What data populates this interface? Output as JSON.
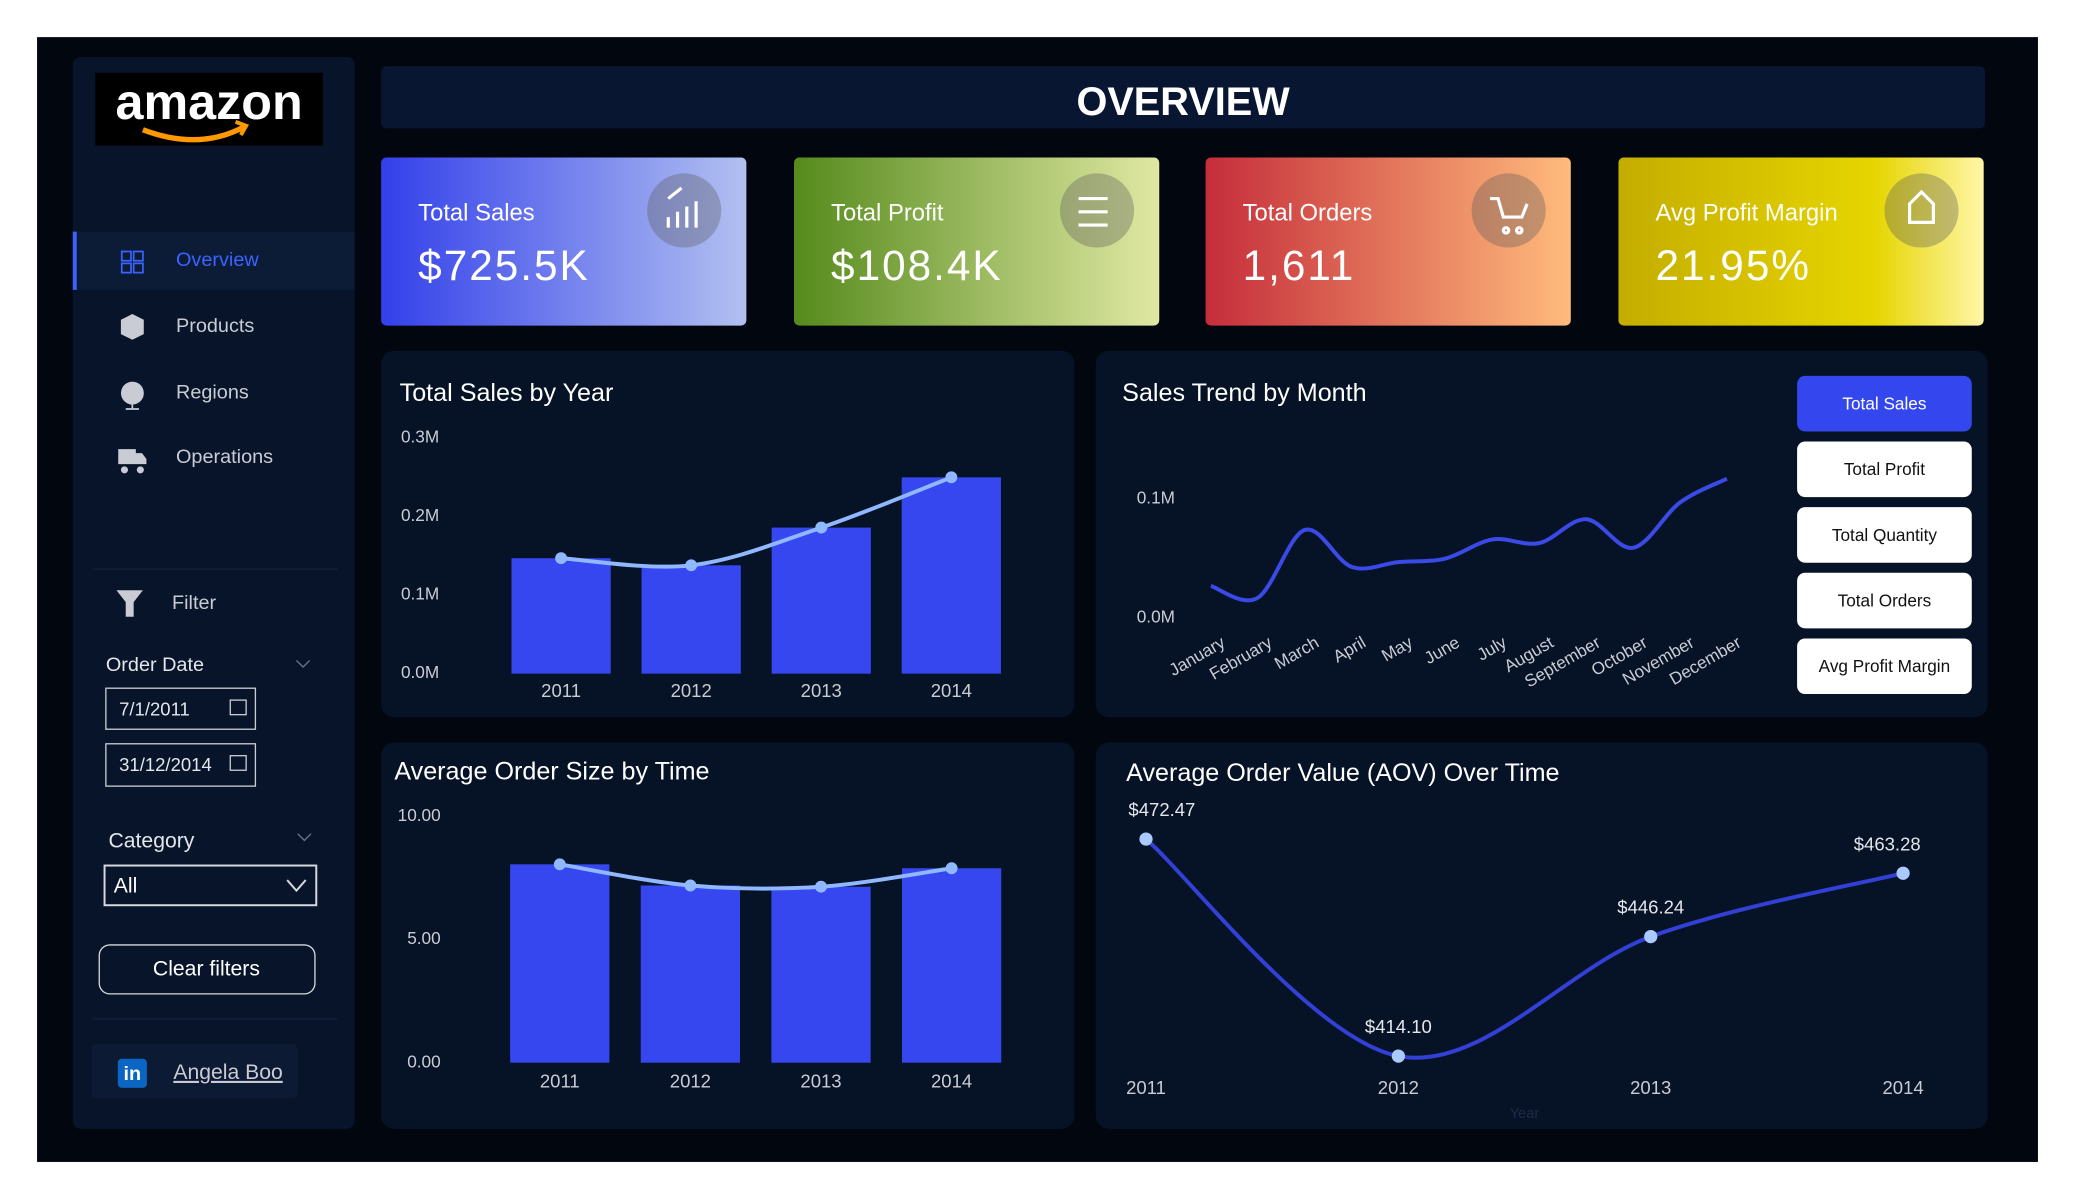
{
  "logo": "amazon",
  "nav": [
    "Overview",
    "Products",
    "Regions",
    "Operations"
  ],
  "filters": {
    "title": "Filter",
    "order_date": "Order Date",
    "start": "7/1/2011",
    "end": "31/12/2014",
    "category": "Category",
    "category_value": "All",
    "clear": "Clear filters"
  },
  "profile": {
    "icon": "in",
    "name": "Angela Boo"
  },
  "title": "OVERVIEW",
  "kpis": [
    {
      "label": "Total Sales",
      "value": "$725.5K"
    },
    {
      "label": "Total Profit",
      "value": "$108.4K"
    },
    {
      "label": "Total Orders",
      "value": "1,611"
    },
    {
      "label": "Avg Profit Margin",
      "value": "21.95%"
    }
  ],
  "chart_data": [
    {
      "type": "bar",
      "title": "Total Sales by Year",
      "categories": [
        "2011",
        "2012",
        "2013",
        "2014"
      ],
      "values": [
        147000,
        138000,
        186000,
        250000
      ],
      "color": "#3747ef",
      "line_color": "#8fb8ff",
      "ylim": [
        0,
        300000
      ],
      "yticks": [
        {
          "value": 0,
          "label": "0.0M"
        },
        {
          "value": 100000,
          "label": "0.1M"
        },
        {
          "value": 200000,
          "label": "0.2M"
        },
        {
          "value": 300000,
          "label": "0.3M"
        }
      ]
    },
    {
      "type": "line",
      "title": "Sales Trend by Month",
      "categories": [
        "January",
        "February",
        "March",
        "April",
        "May",
        "June",
        "July",
        "August",
        "September",
        "October",
        "November",
        "December"
      ],
      "values": [
        27000,
        17000,
        74000,
        43000,
        47000,
        50000,
        66000,
        63000,
        83000,
        59000,
        97000,
        117000
      ],
      "color": "#3a4ae6",
      "ylim": [
        0,
        120000
      ],
      "yticks": [
        {
          "value": 0,
          "label": "0.0M"
        },
        {
          "value": 100000,
          "label": "0.1M"
        }
      ],
      "buttons": [
        "Total Sales",
        "Total Profit",
        "Total Quantity",
        "Total Orders",
        "Avg Profit Margin"
      ],
      "selected": 0
    },
    {
      "type": "bar",
      "title": "Average Order Size by Time",
      "categories": [
        "2011",
        "2012",
        "2013",
        "2014"
      ],
      "values": [
        8.06,
        7.2,
        7.15,
        7.9
      ],
      "color": "#3747ef",
      "line_color": "#8fb8ff",
      "ylim": [
        0,
        10
      ],
      "yticks": [
        {
          "value": 0,
          "label": "0.00"
        },
        {
          "value": 5,
          "label": "5.00"
        },
        {
          "value": 10,
          "label": "10.00"
        }
      ]
    },
    {
      "type": "line",
      "title": "Average Order Value (AOV) Over Time",
      "x_label": "Year",
      "categories": [
        "2011",
        "2012",
        "2013",
        "2014"
      ],
      "values": [
        472.47,
        414.1,
        446.24,
        463.28
      ],
      "value_labels": [
        "$472.47",
        "$414.10",
        "$446.24",
        "$463.28"
      ],
      "color": "#3340d6",
      "point_color": "#a9c9ff"
    }
  ]
}
